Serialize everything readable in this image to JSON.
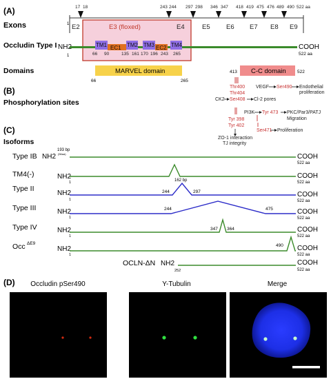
{
  "panels": {
    "a": "(A)",
    "b": "(B)",
    "c": "(C)",
    "d": "(D)"
  },
  "exons": {
    "label": "Exons",
    "aa_end": "522 aa",
    "ticks": [
      "17",
      "18",
      "243",
      "244",
      "297",
      "298",
      "346",
      "347",
      "418",
      "419",
      "475",
      "476",
      "489",
      "490"
    ],
    "names": [
      "E2",
      "E3 (floxed)",
      "E4",
      "E5",
      "E6",
      "E7",
      "E8",
      "E9"
    ],
    "start_num": "1"
  },
  "occludin": {
    "label": "Occludin Type I",
    "nh2": "NH2",
    "cooh": "COOH",
    "len": "522 aa",
    "start": "1",
    "segments": [
      "TM1",
      "EC1",
      "TM2",
      "TM3",
      "EC2",
      "TM4"
    ],
    "boundaries": [
      "66",
      "90",
      "135",
      "161",
      "170",
      "196",
      "243",
      "265"
    ]
  },
  "domains": {
    "label": "Domains",
    "marvel": "MARVEL domain",
    "marvel_start": "66",
    "marvel_end": "265",
    "cc": "C-C domain",
    "cc_start": "413",
    "cc_end": "522"
  },
  "phospho": {
    "label": "Phosphorylation sites",
    "thr400": "Thr400",
    "thr404": "Thr404",
    "vegf": "VEGF",
    "ser490": "Ser490",
    "endo1": "Endothelial",
    "endo2": "proliferation",
    "ck2": "CK2",
    "ser408": "Ser408",
    "cl2": "Cl-2 pores",
    "pi3k": "PI3K",
    "tyr473": "Tyr 473",
    "pkc": "PKC/Par3/PATJ",
    "migration": "Migration",
    "tyr398": "Tyr 398",
    "tyr402": "Tyr 402",
    "zo1": "ZO-1 interaction",
    "tj": "TJ integrity",
    "ser471": "Ser471",
    "prolif": "Proliferation"
  },
  "isoforms": {
    "label": "Isoforms",
    "items": [
      {
        "name": "Type IB",
        "start": "",
        "bp": "193 bp",
        "bp_sub": "(56aa)",
        "markers": []
      },
      {
        "name": "TM4(-)",
        "start": "1",
        "bp": "162 bp",
        "markers": []
      },
      {
        "name": "Type II",
        "start": "1",
        "markers": [
          "244",
          "297"
        ]
      },
      {
        "name": "Type III",
        "start": "1",
        "markers": [
          "244",
          "475"
        ]
      },
      {
        "name": "Type IV",
        "start": "1",
        "markers": [
          "347",
          "364"
        ]
      },
      {
        "name": "Occ",
        "sup": "ΔE9",
        "start": "1",
        "markers": [
          "490"
        ]
      },
      {
        "name": "OCLN-ΔN",
        "start": "252",
        "markers": []
      }
    ],
    "nh2": "NH2",
    "cooh": "COOH",
    "len": "522 aa"
  },
  "micro": {
    "titles": [
      "Occludin pSer490",
      "Y-Tubulin",
      "Merge"
    ]
  },
  "colors": {
    "green_line": "#3a8a2a",
    "blue_line": "#2b2bc8",
    "tm": "#8f6ee6",
    "ec": "#e07020",
    "marvel": "#f7d24a",
    "cc": "#f08c8c",
    "red_text": "#c83232",
    "floxed_box": "#c0392b",
    "floxed_fill": "#f6d0dc"
  }
}
